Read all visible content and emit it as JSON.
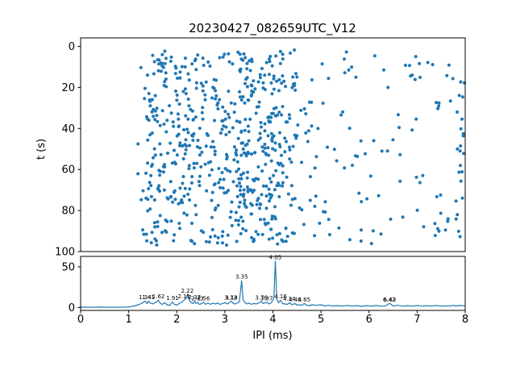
{
  "title": "20230427_082659UTC_V12",
  "colors": {
    "series": "#1f77b4",
    "axis": "#000000",
    "background": "#ffffff",
    "annotation": "#000000"
  },
  "chart_data": [
    {
      "type": "scatter",
      "ylabel": "t (s)",
      "xlabel": "",
      "xlim": [
        0,
        8
      ],
      "ylim": [
        0,
        100
      ],
      "y_axis_inverted": true,
      "yticks": [
        0,
        20,
        40,
        60,
        80,
        100
      ],
      "grid": false,
      "marker_color": "#1f77b4",
      "points_spec": {
        "n": 760,
        "seed": 7,
        "t_range": [
          1.5,
          97
        ],
        "x_background": {
          "range": [
            1.15,
            8.0
          ],
          "weight": 24
        },
        "x_clusters": [
          [
            1.45,
            0.1,
            5
          ],
          [
            1.62,
            0.08,
            4
          ],
          [
            1.8,
            0.1,
            4
          ],
          [
            2.05,
            0.1,
            5
          ],
          [
            2.25,
            0.08,
            5
          ],
          [
            2.45,
            0.1,
            5
          ],
          [
            2.65,
            0.1,
            3
          ],
          [
            2.85,
            0.1,
            3
          ],
          [
            3.05,
            0.1,
            4
          ],
          [
            3.25,
            0.08,
            4
          ],
          [
            3.4,
            0.08,
            5
          ],
          [
            3.6,
            0.1,
            5
          ],
          [
            3.8,
            0.1,
            6
          ],
          [
            3.95,
            0.08,
            5
          ],
          [
            4.1,
            0.08,
            5
          ],
          [
            4.3,
            0.1,
            4
          ],
          [
            4.55,
            0.1,
            2
          ],
          [
            4.9,
            0.12,
            2
          ],
          [
            7.9,
            0.07,
            2
          ]
        ]
      }
    },
    {
      "type": "line",
      "xlabel": "IPI (ms)",
      "ylabel": "",
      "xlim": [
        0,
        8
      ],
      "ylim": [
        0,
        65
      ],
      "xticks": [
        0,
        1,
        2,
        3,
        4,
        5,
        6,
        7,
        8
      ],
      "yticks": [
        0,
        50
      ],
      "grid": false,
      "line_color": "#1f77b4",
      "points": [
        [
          0,
          0.5
        ],
        [
          0.2,
          0.4
        ],
        [
          0.4,
          0.6
        ],
        [
          0.6,
          0.4
        ],
        [
          0.8,
          0.5
        ],
        [
          0.95,
          0.6
        ],
        [
          1.05,
          1.2
        ],
        [
          1.15,
          2.5
        ],
        [
          1.22,
          4
        ],
        [
          1.28,
          5.5
        ],
        [
          1.34,
          8
        ],
        [
          1.38,
          5
        ],
        [
          1.41,
          8
        ],
        [
          1.45,
          5.5
        ],
        [
          1.5,
          4.5
        ],
        [
          1.55,
          6
        ],
        [
          1.62,
          9
        ],
        [
          1.66,
          5
        ],
        [
          1.7,
          4
        ],
        [
          1.75,
          6
        ],
        [
          1.8,
          3.5
        ],
        [
          1.85,
          2.5
        ],
        [
          1.91,
          7
        ],
        [
          1.95,
          4
        ],
        [
          2.0,
          3
        ],
        [
          2.05,
          5
        ],
        [
          2.1,
          6.5
        ],
        [
          2.15,
          9
        ],
        [
          2.19,
          11
        ],
        [
          2.22,
          16
        ],
        [
          2.26,
          9
        ],
        [
          2.3,
          6
        ],
        [
          2.34,
          5
        ],
        [
          2.37,
          8
        ],
        [
          2.4,
          5
        ],
        [
          2.43,
          6.5
        ],
        [
          2.47,
          4
        ],
        [
          2.52,
          5
        ],
        [
          2.56,
          6.5
        ],
        [
          2.6,
          4
        ],
        [
          2.65,
          5.5
        ],
        [
          2.7,
          4
        ],
        [
          2.75,
          5.5
        ],
        [
          2.8,
          4.5
        ],
        [
          2.85,
          5.5
        ],
        [
          2.9,
          4
        ],
        [
          2.95,
          5
        ],
        [
          3.0,
          6
        ],
        [
          3.05,
          4.5
        ],
        [
          3.08,
          5.5
        ],
        [
          3.12,
          7.5
        ],
        [
          3.14,
          7.5
        ],
        [
          3.18,
          5
        ],
        [
          3.22,
          4.5
        ],
        [
          3.26,
          5.5
        ],
        [
          3.3,
          7
        ],
        [
          3.35,
          33
        ],
        [
          3.38,
          10
        ],
        [
          3.42,
          6
        ],
        [
          3.46,
          4.5
        ],
        [
          3.5,
          5.5
        ],
        [
          3.55,
          4
        ],
        [
          3.6,
          5
        ],
        [
          3.65,
          4.5
        ],
        [
          3.7,
          5.5
        ],
        [
          3.76,
          7.5
        ],
        [
          3.8,
          5
        ],
        [
          3.87,
          6.5
        ],
        [
          3.92,
          4.5
        ],
        [
          3.97,
          6
        ],
        [
          4.02,
          12
        ],
        [
          4.05,
          57
        ],
        [
          4.08,
          10
        ],
        [
          4.12,
          6
        ],
        [
          4.16,
          9
        ],
        [
          4.2,
          5
        ],
        [
          4.25,
          4.5
        ],
        [
          4.3,
          4
        ],
        [
          4.34,
          6
        ],
        [
          4.4,
          3.5
        ],
        [
          4.46,
          5
        ],
        [
          4.5,
          3
        ],
        [
          4.56,
          3.5
        ],
        [
          4.6,
          2.8
        ],
        [
          4.65,
          5
        ],
        [
          4.7,
          3
        ],
        [
          4.76,
          2.5
        ],
        [
          4.82,
          3.5
        ],
        [
          4.9,
          2.8
        ],
        [
          5.0,
          3.5
        ],
        [
          5.08,
          2
        ],
        [
          5.16,
          2.8
        ],
        [
          5.25,
          1.8
        ],
        [
          5.35,
          2.5
        ],
        [
          5.45,
          1.8
        ],
        [
          5.55,
          2.6
        ],
        [
          5.65,
          1.8
        ],
        [
          5.75,
          2.4
        ],
        [
          5.85,
          1.6
        ],
        [
          5.95,
          2.4
        ],
        [
          6.05,
          1.8
        ],
        [
          6.15,
          2.6
        ],
        [
          6.25,
          1.8
        ],
        [
          6.35,
          2.2
        ],
        [
          6.42,
          5
        ],
        [
          6.43,
          5
        ],
        [
          6.5,
          2
        ],
        [
          6.6,
          2.8
        ],
        [
          6.7,
          1.8
        ],
        [
          6.8,
          2.4
        ],
        [
          6.9,
          1.8
        ],
        [
          7.0,
          2.6
        ],
        [
          7.1,
          1.8
        ],
        [
          7.2,
          2.4
        ],
        [
          7.3,
          1.8
        ],
        [
          7.4,
          2.6
        ],
        [
          7.5,
          1.8
        ],
        [
          7.6,
          2.2
        ],
        [
          7.7,
          1.8
        ],
        [
          7.75,
          3
        ],
        [
          7.8,
          2
        ],
        [
          7.9,
          2.6
        ],
        [
          8.0,
          2.2
        ]
      ],
      "annotations": [
        {
          "label": "1.34",
          "x": 1.34,
          "y": 8
        },
        {
          "label": "1.41",
          "x": 1.41,
          "y": 8
        },
        {
          "label": "1.62",
          "x": 1.62,
          "y": 9
        },
        {
          "label": "1.91",
          "x": 1.91,
          "y": 7
        },
        {
          "label": "2.15",
          "x": 2.15,
          "y": 9
        },
        {
          "label": "2.22",
          "x": 2.22,
          "y": 16
        },
        {
          "label": "2.37",
          "x": 2.37,
          "y": 8
        },
        {
          "label": "2.43",
          "x": 2.43,
          "y": 6.5
        },
        {
          "label": "2.56",
          "x": 2.56,
          "y": 6.5
        },
        {
          "label": "3.12",
          "x": 3.12,
          "y": 7.5
        },
        {
          "label": "3.14",
          "x": 3.14,
          "y": 7.5
        },
        {
          "label": "3.35",
          "x": 3.35,
          "y": 33
        },
        {
          "label": "3.76",
          "x": 3.76,
          "y": 7.5
        },
        {
          "label": "3.87",
          "x": 3.87,
          "y": 6.5
        },
        {
          "label": "4.05",
          "x": 4.05,
          "y": 57
        },
        {
          "label": "4.16",
          "x": 4.16,
          "y": 9
        },
        {
          "label": "4.34",
          "x": 4.34,
          "y": 6
        },
        {
          "label": "4.46",
          "x": 4.46,
          "y": 5
        },
        {
          "label": "4.65",
          "x": 4.65,
          "y": 5
        },
        {
          "label": "6.42",
          "x": 6.42,
          "y": 5
        },
        {
          "label": "6.43",
          "x": 6.43,
          "y": 5
        }
      ]
    }
  ]
}
